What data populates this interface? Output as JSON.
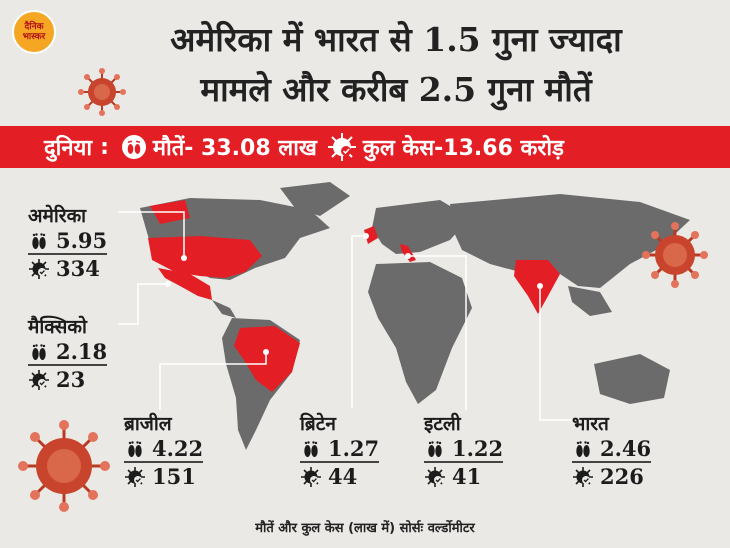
{
  "header": {
    "logo_line1": "दैनिक",
    "logo_line2": "भास्कर",
    "title_line1": "अमेरिका में भारत से 1.5 गुना ज्यादा",
    "title_line2": "मामले और करीब 2.5 गुना मौतें"
  },
  "banner": {
    "label": "दुनिया",
    "separator": ":",
    "deaths_text": "मौतें- 33.08 लाख",
    "cases_text": "कुल केस-13.66 करोड़"
  },
  "countries": [
    {
      "id": "usa",
      "name": "अमेरिका",
      "deaths": "5.95",
      "cases": "334"
    },
    {
      "id": "mexico",
      "name": "मैक्सिको",
      "deaths": "2.18",
      "cases": "23"
    },
    {
      "id": "brazil",
      "name": "ब्राजील",
      "deaths": "4.22",
      "cases": "151"
    },
    {
      "id": "uk",
      "name": "ब्रिटेन",
      "deaths": "1.27",
      "cases": "44"
    },
    {
      "id": "italy",
      "name": "इटली",
      "deaths": "1.22",
      "cases": "41"
    },
    {
      "id": "india",
      "name": "भारत",
      "deaths": "2.46",
      "cases": "226"
    }
  ],
  "footer": {
    "source": "मौतें और कुल केस (लाख में) सोर्सः वर्ल्डोमीटर"
  },
  "colors": {
    "highlight": "#e31e24",
    "land": "#6b6b6b",
    "background": "#ebe9e6",
    "virus": "#c8442c"
  },
  "icons": [
    "feet-icon",
    "virus-icon",
    "coronavirus-illustration"
  ]
}
